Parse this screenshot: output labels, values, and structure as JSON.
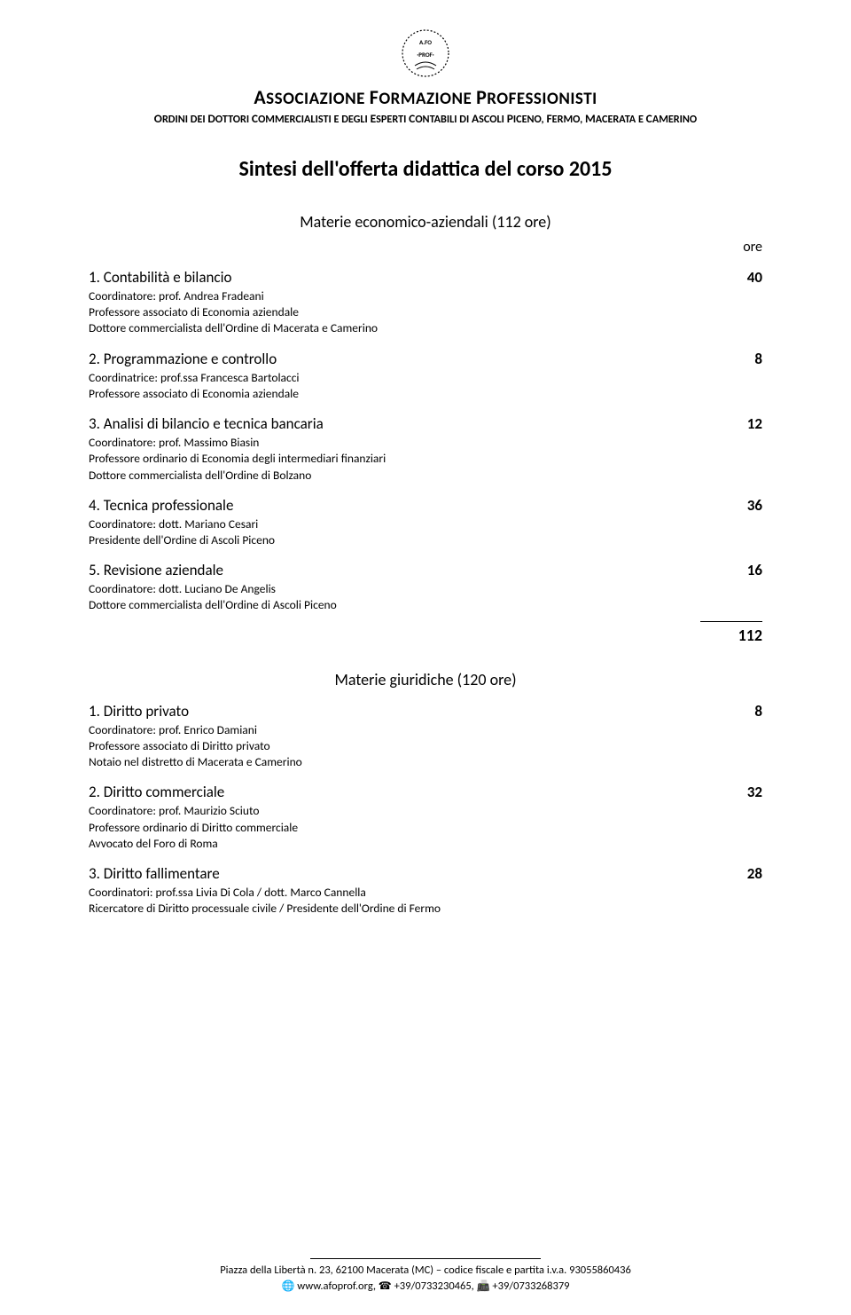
{
  "header": {
    "org_title_parts": [
      "A",
      "SSOCIAZIONE ",
      "F",
      "ORMAZIONE ",
      "P",
      "ROFESSIONISTI"
    ],
    "org_sub_parts": [
      "O",
      "RDINI DEI ",
      "D",
      "OTTORI ",
      "C",
      "OMMERCIALISTI E DEGLI ",
      "E",
      "SPERTI ",
      "C",
      "ONTABILI DI ",
      "A",
      "SCOLI ",
      "P",
      "ICENO",
      ", ",
      "F",
      "ERMO",
      ", ",
      "M",
      "ACERATA E ",
      "C",
      "AMERINO"
    ]
  },
  "doc_title": "Sintesi dell'offerta didattica del corso 2015",
  "section1": {
    "heading": "Materie economico-aziendali (112 ore)",
    "ore_label": "ore",
    "items": [
      {
        "num": "1.",
        "title": "Contabilità e bilancio",
        "hours": "40",
        "desc_lines": [
          "Coordinatore: prof. Andrea Fradeani",
          "Professore associato di Economia aziendale",
          "Dottore commercialista dell'Ordine di Macerata e Camerino"
        ]
      },
      {
        "num": "2.",
        "title": "Programmazione e controllo",
        "hours": "8",
        "desc_lines": [
          "Coordinatrice: prof.ssa Francesca Bartolacci",
          "Professore associato di Economia aziendale"
        ]
      },
      {
        "num": "3.",
        "title": "Analisi di bilancio e tecnica bancaria",
        "hours": "12",
        "desc_lines": [
          "Coordinatore: prof. Massimo Biasin",
          "Professore ordinario di Economia degli intermediari finanziari",
          "Dottore commercialista dell'Ordine di Bolzano"
        ]
      },
      {
        "num": "4.",
        "title": "Tecnica professionale",
        "hours": "36",
        "desc_lines": [
          "Coordinatore: dott. Mariano Cesari",
          "Presidente dell'Ordine di Ascoli Piceno"
        ]
      },
      {
        "num": "5.",
        "title": "Revisione aziendale",
        "hours": "16",
        "desc_lines": [
          "Coordinatore: dott. Luciano De Angelis",
          "Dottore commercialista dell'Ordine di Ascoli Piceno"
        ]
      }
    ],
    "subtotal": "112"
  },
  "section2": {
    "heading": "Materie giuridiche (120 ore)",
    "items": [
      {
        "num": "1.",
        "title": "Diritto privato",
        "hours": "8",
        "desc_lines": [
          "Coordinatore: prof. Enrico Damiani",
          "Professore associato di Diritto privato",
          "Notaio nel distretto di Macerata e Camerino"
        ]
      },
      {
        "num": "2.",
        "title": "Diritto commerciale",
        "hours": "32",
        "desc_lines": [
          "Coordinatore: prof. Maurizio Sciuto",
          "Professore ordinario di Diritto commerciale",
          "Avvocato del Foro di Roma"
        ]
      },
      {
        "num": "3.",
        "title": "Diritto fallimentare",
        "hours": "28",
        "desc_lines": [
          "Coordinatori: prof.ssa Livia Di Cola / dott. Marco Cannella",
          "Ricercatore di Diritto processuale civile / Presidente dell'Ordine di Fermo"
        ]
      }
    ]
  },
  "footer": {
    "line1": "Piazza della Libertà n. 23, 62100 Macerata (MC) – codice fiscale e partita i.v.a. 93055860436",
    "web": "www.afoprof.org",
    "phone1": "+39/0733230465",
    "phone2": "+39/0733268379"
  }
}
